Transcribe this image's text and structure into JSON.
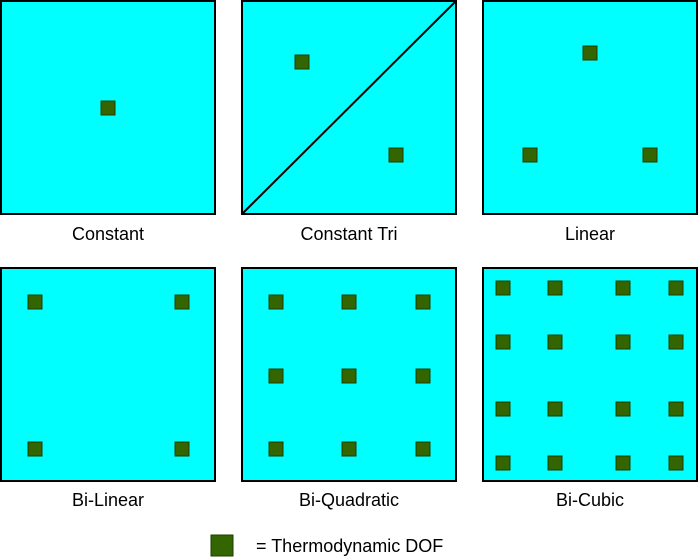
{
  "colors": {
    "cell_fill": "#00ffff",
    "cell_border": "#000000",
    "dof_fill": "#336600",
    "dof_border": "#1e3d00"
  },
  "elements": [
    {
      "label": "Constant",
      "rows": 1,
      "cols": 1,
      "split": false
    },
    {
      "label": "Constant Tri",
      "rows": 0,
      "cols": 0,
      "split": true
    },
    {
      "label": "Linear",
      "rows": 0,
      "cols": 0,
      "split": false,
      "triangle": true
    },
    {
      "label": "Bi-Linear",
      "rows": 2,
      "cols": 2,
      "split": false
    },
    {
      "label": "Bi-Quadratic",
      "rows": 3,
      "cols": 3,
      "split": false
    },
    {
      "label": "Bi-Cubic",
      "rows": 4,
      "cols": 4,
      "split": false
    }
  ],
  "legend": {
    "text": "= Thermodynamic DOF",
    "icon": "dof-marker"
  }
}
